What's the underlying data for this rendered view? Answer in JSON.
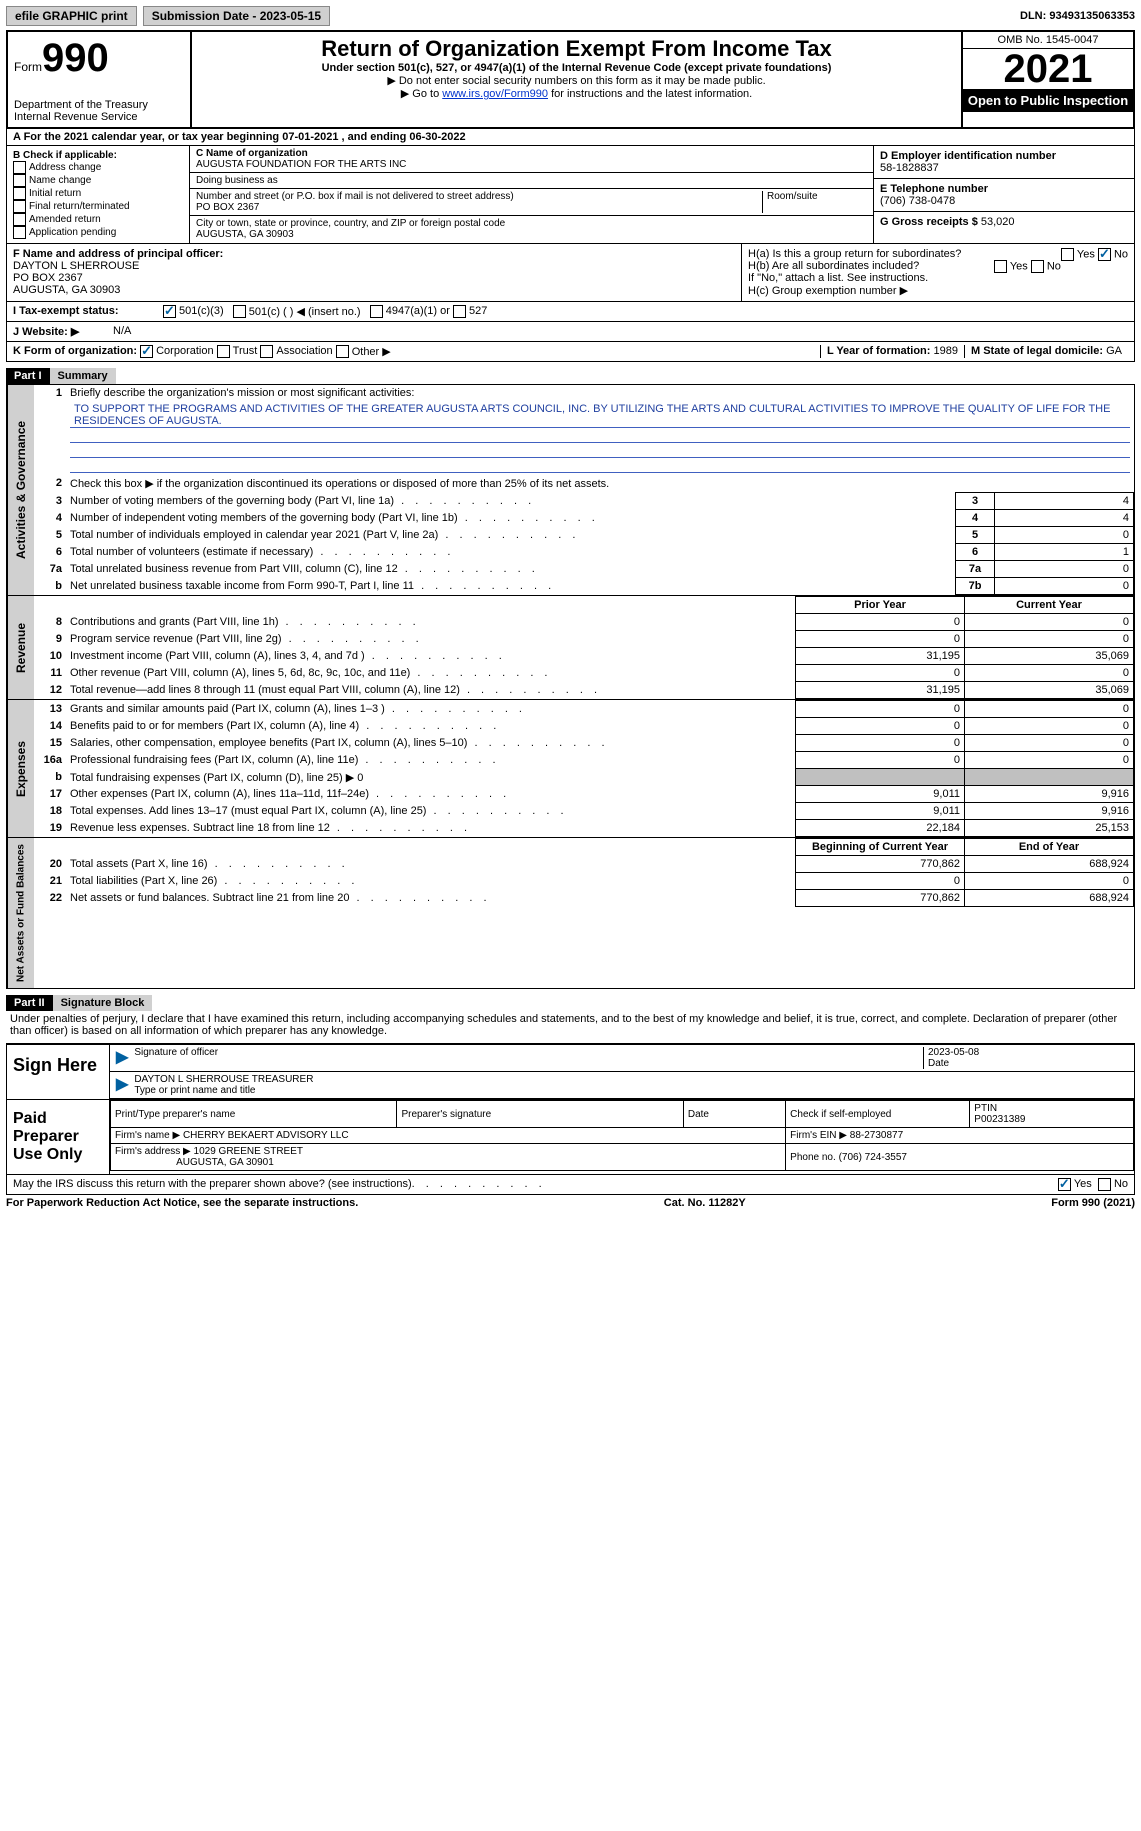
{
  "topbar": {
    "efile": "efile GRAPHIC print",
    "submission_label": "Submission Date - 2023-05-15",
    "dln_label": "DLN: 93493135063353"
  },
  "header": {
    "form_word": "Form",
    "form_num": "990",
    "dept": "Department of the Treasury",
    "irs": "Internal Revenue Service",
    "title": "Return of Organization Exempt From Income Tax",
    "sub1": "Under section 501(c), 527, or 4947(a)(1) of the Internal Revenue Code (except private foundations)",
    "sub2": "▶ Do not enter social security numbers on this form as it may be made public.",
    "sub3_pre": "▶ Go to ",
    "sub3_link": "www.irs.gov/Form990",
    "sub3_post": " for instructions and the latest information.",
    "omb": "OMB No. 1545-0047",
    "year": "2021",
    "open": "Open to Public Inspection"
  },
  "rowA": {
    "text_pre": "A For the 2021 calendar year, or tax year beginning ",
    "begin": "07-01-2021",
    "text_mid": "  , and ending ",
    "end": "06-30-2022"
  },
  "b": {
    "label": "B Check if applicable:",
    "opts": [
      "Address change",
      "Name change",
      "Initial return",
      "Final return/terminated",
      "Amended return",
      "Application pending"
    ]
  },
  "c": {
    "name_label": "C Name of organization",
    "name": "AUGUSTA FOUNDATION FOR THE ARTS INC",
    "dba_label": "Doing business as",
    "street_label": "Number and street (or P.O. box if mail is not delivered to street address)",
    "room_label": "Room/suite",
    "street": "PO BOX 2367",
    "city_label": "City or town, state or province, country, and ZIP or foreign postal code",
    "city": "AUGUSTA, GA  30903"
  },
  "d": {
    "label": "D Employer identification number",
    "val": "58-1828837"
  },
  "e": {
    "label": "E Telephone number",
    "val": "(706) 738-0478"
  },
  "g": {
    "label": "G Gross receipts $",
    "val": "53,020"
  },
  "f": {
    "label": "F Name and address of principal officer:",
    "name": "DAYTON L SHERROUSE",
    "addr1": "PO BOX 2367",
    "addr2": "AUGUSTA, GA  30903"
  },
  "h": {
    "a": "H(a)  Is this a group return for subordinates?",
    "b": "H(b)  Are all subordinates included?",
    "b_note": "If \"No,\" attach a list. See instructions.",
    "c": "H(c)  Group exemption number ▶",
    "yes": "Yes",
    "no": "No"
  },
  "i": {
    "label": "I    Tax-exempt status:",
    "o1": "501(c)(3)",
    "o2": "501(c) (  ) ◀ (insert no.)",
    "o3": "4947(a)(1) or",
    "o4": "527"
  },
  "j": {
    "label": "J   Website: ▶",
    "val": "N/A"
  },
  "k": {
    "label": "K Form of organization:",
    "o1": "Corporation",
    "o2": "Trust",
    "o3": "Association",
    "o4": "Other ▶",
    "l_label": "L Year of formation:",
    "l_val": "1989",
    "m_label": "M State of legal domicile:",
    "m_val": "GA"
  },
  "part1": {
    "num": "Part I",
    "title": "Summary",
    "l1": "Briefly describe the organization's mission or most significant activities:",
    "mission": "TO SUPPORT THE PROGRAMS AND ACTIVITIES OF THE GREATER AUGUSTA ARTS COUNCIL, INC. BY UTILIZING THE ARTS AND CULTURAL ACTIVITIES TO IMPROVE THE QUALITY OF LIFE FOR THE RESIDENCES OF AUGUSTA.",
    "l2": "Check this box ▶        if the organization discontinued its operations or disposed of more than 25% of its net assets.",
    "rows_a": [
      {
        "n": "3",
        "t": "Number of voting members of the governing body (Part VI, line 1a)",
        "b": "3",
        "v": "4"
      },
      {
        "n": "4",
        "t": "Number of independent voting members of the governing body (Part VI, line 1b)",
        "b": "4",
        "v": "4"
      },
      {
        "n": "5",
        "t": "Total number of individuals employed in calendar year 2021 (Part V, line 2a)",
        "b": "5",
        "v": "0"
      },
      {
        "n": "6",
        "t": "Total number of volunteers (estimate if necessary)",
        "b": "6",
        "v": "1"
      },
      {
        "n": "7a",
        "t": "Total unrelated business revenue from Part VIII, column (C), line 12",
        "b": "7a",
        "v": "0"
      },
      {
        "n": "b",
        "t": "Net unrelated business taxable income from Form 990-T, Part I, line 11",
        "b": "7b",
        "v": "0"
      }
    ],
    "hdr_prior": "Prior Year",
    "hdr_current": "Current Year",
    "rows_rev": [
      {
        "n": "8",
        "t": "Contributions and grants (Part VIII, line 1h)",
        "p": "0",
        "c": "0"
      },
      {
        "n": "9",
        "t": "Program service revenue (Part VIII, line 2g)",
        "p": "0",
        "c": "0"
      },
      {
        "n": "10",
        "t": "Investment income (Part VIII, column (A), lines 3, 4, and 7d )",
        "p": "31,195",
        "c": "35,069"
      },
      {
        "n": "11",
        "t": "Other revenue (Part VIII, column (A), lines 5, 6d, 8c, 9c, 10c, and 11e)",
        "p": "0",
        "c": "0"
      },
      {
        "n": "12",
        "t": "Total revenue—add lines 8 through 11 (must equal Part VIII, column (A), line 12)",
        "p": "31,195",
        "c": "35,069"
      }
    ],
    "rows_exp": [
      {
        "n": "13",
        "t": "Grants and similar amounts paid (Part IX, column (A), lines 1–3 )",
        "p": "0",
        "c": "0"
      },
      {
        "n": "14",
        "t": "Benefits paid to or for members (Part IX, column (A), line 4)",
        "p": "0",
        "c": "0"
      },
      {
        "n": "15",
        "t": "Salaries, other compensation, employee benefits (Part IX, column (A), lines 5–10)",
        "p": "0",
        "c": "0"
      },
      {
        "n": "16a",
        "t": "Professional fundraising fees (Part IX, column (A), line 11e)",
        "p": "0",
        "c": "0"
      },
      {
        "n": "b",
        "t": "Total fundraising expenses (Part IX, column (D), line 25) ▶ 0",
        "p": "",
        "c": "",
        "gray": true
      },
      {
        "n": "17",
        "t": "Other expenses (Part IX, column (A), lines 11a–11d, 11f–24e)",
        "p": "9,011",
        "c": "9,916"
      },
      {
        "n": "18",
        "t": "Total expenses. Add lines 13–17 (must equal Part IX, column (A), line 25)",
        "p": "9,011",
        "c": "9,916"
      },
      {
        "n": "19",
        "t": "Revenue less expenses. Subtract line 18 from line 12",
        "p": "22,184",
        "c": "25,153"
      }
    ],
    "hdr_begin": "Beginning of Current Year",
    "hdr_end": "End of Year",
    "rows_net": [
      {
        "n": "20",
        "t": "Total assets (Part X, line 16)",
        "p": "770,862",
        "c": "688,924"
      },
      {
        "n": "21",
        "t": "Total liabilities (Part X, line 26)",
        "p": "0",
        "c": "0"
      },
      {
        "n": "22",
        "t": "Net assets or fund balances. Subtract line 21 from line 20",
        "p": "770,862",
        "c": "688,924"
      }
    ],
    "vtab_ag": "Activities & Governance",
    "vtab_rev": "Revenue",
    "vtab_exp": "Expenses",
    "vtab_net": "Net Assets or Fund Balances"
  },
  "part2": {
    "num": "Part II",
    "title": "Signature Block",
    "penalty": "Under penalties of perjury, I declare that I have examined this return, including accompanying schedules and statements, and to the best of my knowledge and belief, it is true, correct, and complete. Declaration of preparer (other than officer) is based on all information of which preparer has any knowledge.",
    "sign_here": "Sign Here",
    "sig_officer": "Signature of officer",
    "sig_date": "Date",
    "sig_date_val": "2023-05-08",
    "sig_name": "DAYTON L SHERROUSE  TREASURER",
    "sig_name_label": "Type or print name and title",
    "paid": "Paid Preparer Use Only",
    "p_name_label": "Print/Type preparer's name",
    "p_sig_label": "Preparer's signature",
    "p_date_label": "Date",
    "p_self": "Check         if self-employed",
    "p_ptin_label": "PTIN",
    "p_ptin": "P00231389",
    "p_firm_label": "Firm's name   ▶",
    "p_firm": "CHERRY BEKAERT ADVISORY LLC",
    "p_ein_label": "Firm's EIN ▶",
    "p_ein": "88-2730877",
    "p_addr_label": "Firm's address ▶",
    "p_addr1": "1029 GREENE STREET",
    "p_addr2": "AUGUSTA, GA  30901",
    "p_phone_label": "Phone no.",
    "p_phone": "(706) 724-3557",
    "may_irs": "May the IRS discuss this return with the preparer shown above? (see instructions)",
    "yes": "Yes",
    "no": "No"
  },
  "footer": {
    "left": "For Paperwork Reduction Act Notice, see the separate instructions.",
    "mid": "Cat. No. 11282Y",
    "right": "Form 990 (2021)"
  }
}
